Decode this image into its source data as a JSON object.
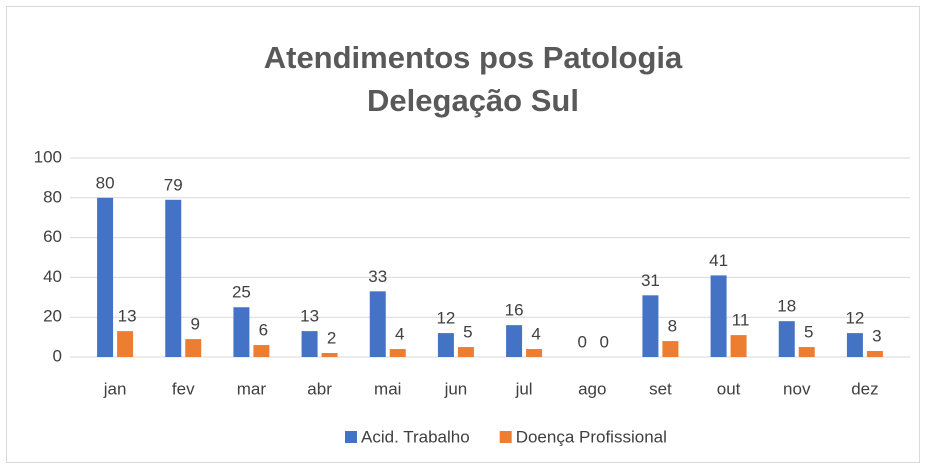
{
  "chart_data": {
    "type": "bar",
    "title": "Atendimentos pos Patologia",
    "subtitle": "Delegação Sul",
    "categories": [
      "jan",
      "fev",
      "mar",
      "abr",
      "mai",
      "jun",
      "jul",
      "ago",
      "set",
      "out",
      "nov",
      "dez"
    ],
    "series": [
      {
        "name": "Acid. Trabalho",
        "color": "#4472c4",
        "values": [
          80,
          79,
          25,
          13,
          33,
          12,
          16,
          0,
          31,
          41,
          18,
          12
        ]
      },
      {
        "name": "Doença Profissional",
        "color": "#ed7d31",
        "values": [
          13,
          9,
          6,
          2,
          4,
          5,
          4,
          0,
          8,
          11,
          5,
          3
        ]
      }
    ],
    "ylim": [
      0,
      100
    ],
    "yticks": [
      0,
      20,
      40,
      60,
      80,
      100
    ],
    "grid": true,
    "legend": "bottom"
  }
}
